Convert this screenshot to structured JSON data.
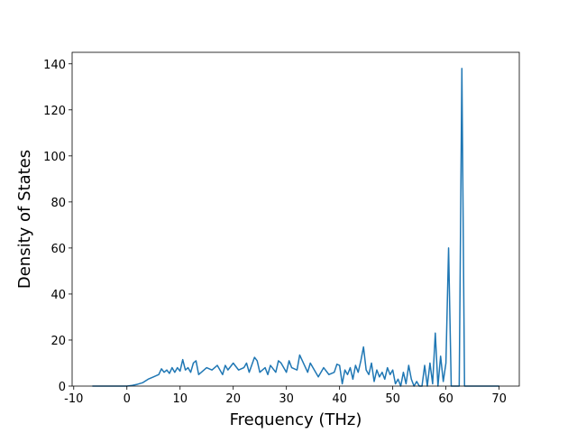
{
  "chart_data": {
    "type": "line",
    "xlabel": "Frequency (THz)",
    "ylabel": "Density of States",
    "x": [
      -6.5,
      0,
      1,
      2,
      3,
      4,
      5,
      6,
      6.5,
      7,
      7.5,
      8,
      8.5,
      9,
      9.5,
      10,
      10.5,
      11,
      11.5,
      12,
      12.5,
      13,
      13.5,
      14,
      15,
      16,
      17,
      18,
      18.5,
      19,
      20,
      21,
      22,
      22.5,
      23,
      24,
      24.5,
      25,
      26,
      26.5,
      27,
      28,
      28.5,
      29,
      30,
      30.5,
      31,
      32,
      32.5,
      33,
      34,
      34.5,
      35,
      36,
      37,
      38,
      39,
      39.5,
      40,
      40.5,
      41,
      41.5,
      42,
      42.5,
      43,
      43.5,
      44,
      44.5,
      45,
      45.5,
      46,
      46.5,
      47,
      47.5,
      48,
      48.5,
      49,
      49.5,
      50,
      50.5,
      51,
      51.5,
      52,
      52.5,
      53,
      53.5,
      54,
      54.5,
      55,
      55.5,
      56,
      56.5,
      57,
      57.5,
      58,
      58.5,
      59,
      59.5,
      60,
      60.5,
      61,
      62.5,
      63,
      63.5,
      70
    ],
    "series": [
      {
        "color": "#1f77b4",
        "values": [
          0,
          0,
          0.3,
          0.8,
          1.5,
          3,
          4,
          5,
          7.5,
          6,
          7,
          5.5,
          8,
          6,
          8,
          6.5,
          11.5,
          7,
          8,
          6,
          10,
          11,
          5,
          6,
          8,
          7,
          9,
          5,
          9,
          7,
          10,
          7,
          8,
          10,
          6,
          12.5,
          11,
          6,
          8,
          5,
          9,
          6,
          11,
          10,
          6,
          11,
          8,
          7,
          13.5,
          11,
          6,
          10,
          8,
          4,
          8,
          5,
          6,
          9.5,
          9,
          1,
          7,
          5,
          8,
          3,
          9,
          6,
          11,
          17,
          7,
          5,
          10,
          2,
          7,
          4,
          6,
          3,
          8,
          5,
          7,
          1,
          3,
          0,
          6,
          1,
          9,
          3,
          0,
          2,
          0,
          0,
          9,
          0,
          10,
          1,
          23,
          0,
          13,
          2,
          10,
          60,
          0,
          0,
          138,
          0,
          0
        ]
      }
    ],
    "xlim": [
      -10.3,
      73.8
    ],
    "ylim": [
      0,
      145
    ],
    "xticks": [
      -10,
      0,
      10,
      20,
      30,
      40,
      50,
      60,
      70
    ],
    "yticks": [
      0,
      20,
      40,
      60,
      80,
      100,
      120,
      140
    ]
  }
}
